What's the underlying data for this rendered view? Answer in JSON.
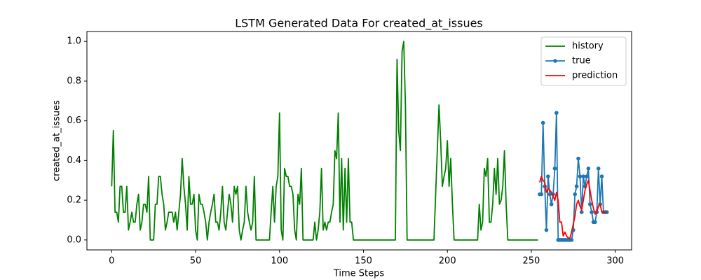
{
  "chart_data": {
    "type": "line",
    "title": "LSTM Generated Data For created_at_issues",
    "xlabel": "Time Steps",
    "ylabel": "created_at_issues",
    "xlim": [
      -14.75,
      309.75
    ],
    "ylim": [
      -0.05,
      1.05
    ],
    "xticks": [
      0,
      50,
      100,
      150,
      200,
      250,
      300
    ],
    "yticks": [
      {
        "value": 0,
        "label": "0.0"
      },
      0.2,
      0.4,
      0.6,
      0.8,
      {
        "value": 1,
        "label": "1.0"
      }
    ],
    "legend": "upper right",
    "series": [
      {
        "name": "history",
        "color": "#008000",
        "marker": "none",
        "x": [
          0,
          1,
          2,
          3,
          4,
          5,
          6,
          7,
          8,
          9,
          10,
          11,
          12,
          13,
          14,
          15,
          16,
          17,
          18,
          19,
          20,
          21,
          22,
          23,
          24,
          25,
          26,
          27,
          28,
          29,
          30,
          31,
          32,
          33,
          34,
          35,
          36,
          37,
          38,
          39,
          40,
          41,
          42,
          43,
          44,
          45,
          46,
          47,
          48,
          49,
          50,
          51,
          52,
          53,
          54,
          55,
          56,
          57,
          58,
          59,
          60,
          61,
          62,
          63,
          64,
          65,
          66,
          67,
          68,
          69,
          70,
          71,
          72,
          73,
          74,
          75,
          76,
          77,
          78,
          79,
          80,
          81,
          82,
          83,
          84,
          85,
          86,
          87,
          88,
          89,
          90,
          91,
          92,
          93,
          94,
          95,
          96,
          97,
          98,
          99,
          100,
          101,
          102,
          103,
          104,
          105,
          106,
          107,
          108,
          109,
          110,
          111,
          112,
          113,
          114,
          115,
          116,
          117,
          118,
          119,
          120,
          121,
          122,
          123,
          124,
          125,
          126,
          127,
          128,
          129,
          130,
          131,
          132,
          133,
          134,
          135,
          136,
          137,
          138,
          139,
          140,
          141,
          142,
          143,
          144,
          145,
          146,
          147,
          148,
          149,
          150,
          151,
          152,
          153,
          154,
          155,
          156,
          157,
          158,
          159,
          160,
          161,
          162,
          163,
          164,
          165,
          166,
          167,
          168,
          169,
          170,
          171,
          172,
          173,
          174,
          175,
          176,
          177,
          178,
          179,
          180,
          181,
          182,
          183,
          184,
          185,
          186,
          187,
          188,
          189,
          190,
          191,
          192,
          193,
          194,
          195,
          196,
          197,
          198,
          199,
          200,
          201,
          202,
          203,
          204,
          205,
          206,
          207,
          208,
          209,
          210,
          211,
          212,
          213,
          214,
          215,
          216,
          217,
          218,
          219,
          220,
          221,
          222,
          223,
          224,
          225,
          226,
          227,
          228,
          229,
          230,
          231,
          232,
          233,
          234,
          235,
          236,
          237,
          238,
          239,
          240,
          241,
          242,
          243,
          244,
          245,
          246,
          247,
          248,
          249,
          250,
          251,
          252,
          253,
          254
        ],
        "values": [
          0.27,
          0.55,
          0.14,
          0.14,
          0.09,
          0.27,
          0.27,
          0.14,
          0.14,
          0.27,
          0.05,
          0.09,
          0.14,
          0.09,
          0.09,
          0.18,
          0.23,
          0.05,
          0.09,
          0.18,
          0.18,
          0.14,
          0.32,
          0,
          0,
          0,
          0.18,
          0.18,
          0.32,
          0.32,
          0.23,
          0.18,
          0.05,
          0.09,
          0.14,
          0.14,
          0.14,
          0.09,
          0.14,
          0.05,
          0.14,
          0.23,
          0.41,
          0.27,
          0.18,
          0.05,
          0.32,
          0.18,
          0.18,
          0.23,
          0.05,
          0,
          0.23,
          0.18,
          0.18,
          0.14,
          0.09,
          0,
          0.09,
          0.14,
          0.18,
          0.23,
          0.09,
          0.09,
          0.05,
          0.14,
          0.27,
          0.09,
          0.05,
          0.14,
          0.23,
          0.18,
          0.09,
          0.27,
          0.23,
          0.27,
          0.05,
          0,
          0.05,
          0.09,
          0.27,
          0.14,
          0.09,
          0.05,
          0.09,
          0.32,
          0,
          0,
          0,
          0,
          0,
          0,
          0,
          0,
          0,
          0.14,
          0.27,
          0.09,
          0.27,
          0.32,
          0.64,
          0.05,
          0,
          0.36,
          0.32,
          0.32,
          0.27,
          0.27,
          0.23,
          0.05,
          0,
          0.23,
          0.18,
          0.36,
          0,
          0,
          0,
          0,
          0,
          0,
          0,
          0.09,
          0,
          0.05,
          0.14,
          0.36,
          0.05,
          0.09,
          0.05,
          0.09,
          0.09,
          0.14,
          0.18,
          0.45,
          0.41,
          0.64,
          0.09,
          0.41,
          0.05,
          0.36,
          0.09,
          0.41,
          0.09,
          0.09,
          0,
          0,
          0,
          0,
          0,
          0,
          0,
          0,
          0,
          0,
          0,
          0,
          0,
          0,
          0,
          0,
          0,
          0,
          0,
          0,
          0,
          0,
          0,
          0,
          0,
          0,
          0.91,
          0.55,
          0.45,
          0.95,
          1.0,
          0.68,
          0,
          0,
          0,
          0,
          0,
          0,
          0,
          0,
          0,
          0,
          0,
          0,
          0,
          0,
          0,
          0,
          0,
          0.23,
          0.45,
          0.68,
          0.5,
          0.27,
          0.32,
          0.36,
          0.5,
          0.27,
          0.41,
          0.18,
          0,
          0,
          0,
          0,
          0,
          0,
          0,
          0,
          0,
          0,
          0,
          0,
          0,
          0,
          0,
          0.18,
          0.05,
          0.09,
          0.36,
          0.32,
          0.41,
          0.09,
          0.09,
          0.18,
          0.36,
          0.23,
          0.41,
          0.18,
          0.2,
          0.27,
          0.45,
          0.18,
          0,
          0,
          0,
          0,
          0,
          0,
          0,
          0,
          0,
          0,
          0,
          0,
          0,
          0,
          0,
          0,
          0,
          0,
          0
        ]
      },
      {
        "name": "true",
        "color": "#1f77b4",
        "marker": "o",
        "x": [
          255,
          256,
          257,
          258,
          259,
          260,
          261,
          262,
          263,
          264,
          265,
          266,
          267,
          268,
          269,
          270,
          271,
          272,
          273,
          274,
          275,
          276,
          277,
          278,
          279,
          280,
          281,
          282,
          283,
          284,
          285,
          286,
          287,
          288,
          289,
          290,
          291,
          292,
          293,
          294,
          295
        ],
        "values": [
          0.23,
          0.23,
          0.59,
          0.27,
          0.05,
          0.32,
          0.23,
          0.18,
          0.23,
          0.36,
          0.64,
          0,
          0,
          0,
          0,
          0,
          0,
          0,
          0,
          0,
          0.05,
          0.23,
          0.27,
          0.41,
          0.32,
          0.14,
          0.32,
          0.27,
          0.32,
          0.36,
          0.18,
          0.14,
          0.09,
          0.09,
          0.14,
          0.36,
          0.18,
          0.32,
          0.14,
          0.14,
          0.14
        ]
      },
      {
        "name": "prediction",
        "color": "#ff0000",
        "marker": "none",
        "x": [
          255,
          256,
          257,
          258,
          259,
          260,
          261,
          262,
          263,
          264,
          265,
          266,
          267,
          268,
          269,
          270,
          271,
          272,
          273,
          274,
          275,
          276,
          277,
          278,
          279,
          280,
          281,
          282,
          283,
          284,
          285,
          286,
          287,
          288,
          289,
          290,
          291,
          292,
          293,
          294,
          295
        ],
        "values": [
          0.29,
          0.32,
          0.3,
          0.29,
          0.24,
          0.26,
          0.25,
          0.24,
          0.22,
          0.2,
          0.24,
          0.2,
          0.09,
          0.09,
          0.02,
          0.04,
          0.02,
          0.01,
          0.01,
          0.04,
          0.08,
          0.12,
          0.18,
          0.2,
          0.17,
          0.15,
          0.2,
          0.25,
          0.28,
          0.3,
          0.25,
          0.2,
          0.16,
          0.13,
          0.14,
          0.17,
          0.18,
          0.14,
          0.14,
          0.14,
          0.14
        ]
      }
    ]
  }
}
